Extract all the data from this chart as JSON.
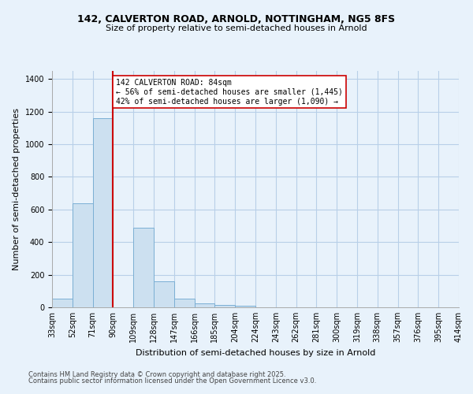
{
  "title1": "142, CALVERTON ROAD, ARNOLD, NOTTINGHAM, NG5 8FS",
  "title2": "Size of property relative to semi-detached houses in Arnold",
  "xlabel": "Distribution of semi-detached houses by size in Arnold",
  "ylabel": "Number of semi-detached properties",
  "bins": [
    "33sqm",
    "52sqm",
    "71sqm",
    "90sqm",
    "109sqm",
    "128sqm",
    "147sqm",
    "166sqm",
    "185sqm",
    "204sqm",
    "224sqm",
    "243sqm",
    "262sqm",
    "281sqm",
    "300sqm",
    "319sqm",
    "338sqm",
    "357sqm",
    "376sqm",
    "395sqm",
    "414sqm"
  ],
  "bar_heights": [
    55,
    640,
    1160,
    0,
    490,
    160,
    55,
    25,
    15,
    10,
    0,
    0,
    0,
    0,
    0,
    0,
    0,
    0,
    0,
    0
  ],
  "bar_color": "#cce0f0",
  "bar_edge_color": "#7bafd4",
  "grid_color": "#b8cfe8",
  "red_line_x": 3,
  "red_line_color": "#cc0000",
  "annotation_text": "142 CALVERTON ROAD: 84sqm\n← 56% of semi-detached houses are smaller (1,445)\n42% of semi-detached houses are larger (1,090) →",
  "annotation_box_color": "#ffffff",
  "annotation_box_edge": "#cc0000",
  "ylim": [
    0,
    1450
  ],
  "yticks": [
    0,
    200,
    400,
    600,
    800,
    1000,
    1200,
    1400
  ],
  "footer1": "Contains HM Land Registry data © Crown copyright and database right 2025.",
  "footer2": "Contains public sector information licensed under the Open Government Licence v3.0.",
  "bg_color": "#e8f2fb",
  "plot_bg_color": "#e8f2fb",
  "title1_fontsize": 9,
  "title2_fontsize": 8,
  "ylabel_fontsize": 8,
  "xlabel_fontsize": 8,
  "tick_fontsize": 7,
  "footer_fontsize": 6
}
